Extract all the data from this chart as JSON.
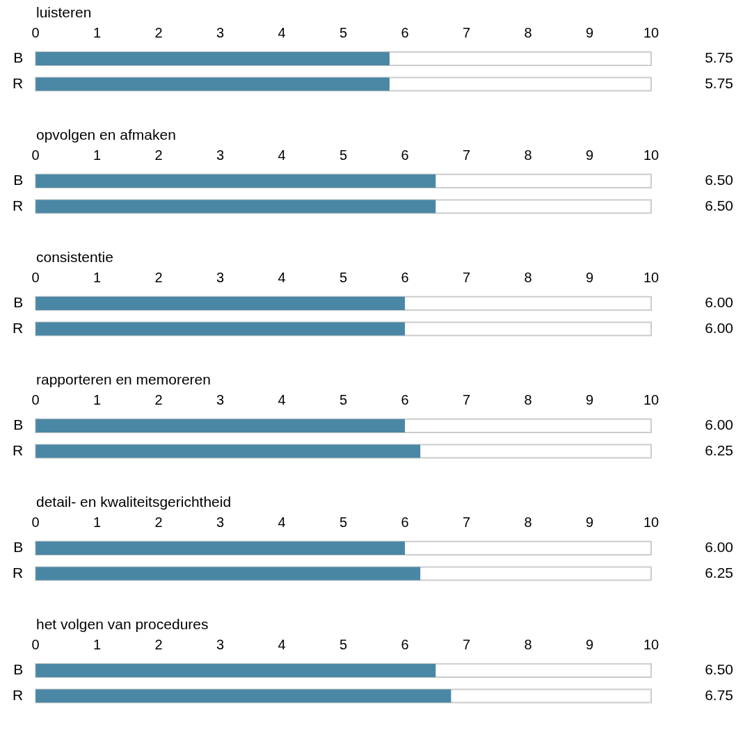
{
  "chart_data": [
    {
      "type": "bar",
      "orientation": "horizontal",
      "title": "luisteren",
      "categories": [
        "B",
        "R"
      ],
      "values": [
        5.75,
        5.75
      ],
      "value_labels": [
        "5.75",
        "5.75"
      ],
      "color": "#4a87a4",
      "xlim": [
        0,
        10
      ],
      "xticks": [
        0,
        1,
        2,
        3,
        4,
        5,
        6,
        7,
        8,
        9,
        10
      ]
    },
    {
      "type": "bar",
      "orientation": "horizontal",
      "title": "opvolgen en afmaken",
      "categories": [
        "B",
        "R"
      ],
      "values": [
        6.5,
        6.5
      ],
      "value_labels": [
        "6.50",
        "6.50"
      ],
      "color": "#4a87a4",
      "xlim": [
        0,
        10
      ],
      "xticks": [
        0,
        1,
        2,
        3,
        4,
        5,
        6,
        7,
        8,
        9,
        10
      ]
    },
    {
      "type": "bar",
      "orientation": "horizontal",
      "title": "consistentie",
      "categories": [
        "B",
        "R"
      ],
      "values": [
        6,
        6
      ],
      "value_labels": [
        "6.00",
        "6.00"
      ],
      "color": "#4a87a4",
      "xlim": [
        0,
        10
      ],
      "xticks": [
        0,
        1,
        2,
        3,
        4,
        5,
        6,
        7,
        8,
        9,
        10
      ]
    },
    {
      "type": "bar",
      "orientation": "horizontal",
      "title": "rapporteren en memoreren",
      "categories": [
        "B",
        "R"
      ],
      "values": [
        6,
        6.25
      ],
      "value_labels": [
        "6.00",
        "6.25"
      ],
      "color": "#4a87a4",
      "xlim": [
        0,
        10
      ],
      "xticks": [
        0,
        1,
        2,
        3,
        4,
        5,
        6,
        7,
        8,
        9,
        10
      ]
    },
    {
      "type": "bar",
      "orientation": "horizontal",
      "title": "detail- en kwaliteitsgerichtheid",
      "categories": [
        "B",
        "R"
      ],
      "values": [
        6,
        6.25
      ],
      "value_labels": [
        "6.00",
        "6.25"
      ],
      "color": "#4a87a4",
      "xlim": [
        0,
        10
      ],
      "xticks": [
        0,
        1,
        2,
        3,
        4,
        5,
        6,
        7,
        8,
        9,
        10
      ]
    },
    {
      "type": "bar",
      "orientation": "horizontal",
      "title": "het volgen van procedures",
      "categories": [
        "B",
        "R"
      ],
      "values": [
        6.5,
        6.75
      ],
      "value_labels": [
        "6.50",
        "6.75"
      ],
      "color": "#4a87a4",
      "xlim": [
        0,
        10
      ],
      "xticks": [
        0,
        1,
        2,
        3,
        4,
        5,
        6,
        7,
        8,
        9,
        10
      ]
    }
  ]
}
